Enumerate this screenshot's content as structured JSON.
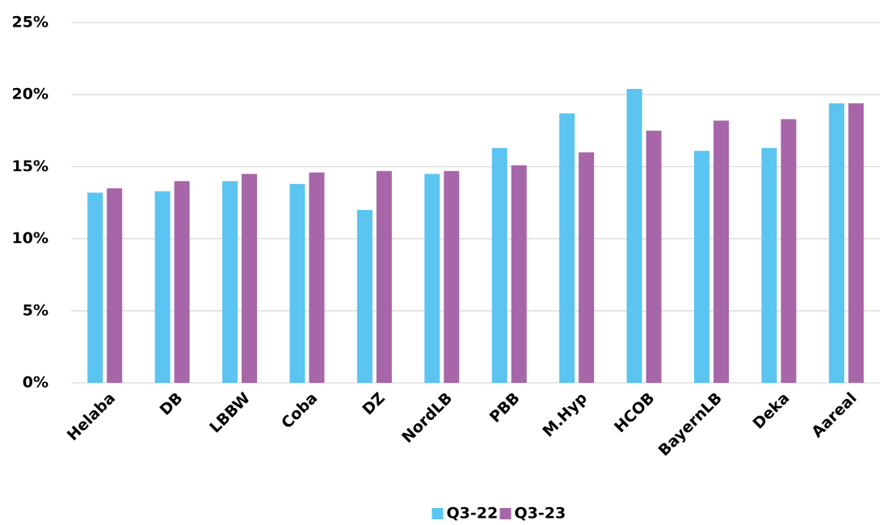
{
  "chart_data": {
    "type": "bar",
    "categories": [
      "Helaba",
      "DB",
      "LBBW",
      "Coba",
      "DZ",
      "NordLB",
      "PBB",
      "M.Hyp",
      "HCOB",
      "BayernLB",
      "Deka",
      "Aareal"
    ],
    "series": [
      {
        "name": "Q3-22",
        "color": "#5bc4f1",
        "values": [
          13.2,
          13.3,
          14.0,
          13.8,
          12.0,
          14.5,
          16.3,
          18.7,
          20.4,
          16.1,
          16.3,
          19.4
        ]
      },
      {
        "name": "Q3-23",
        "color": "#a666a8",
        "values": [
          13.5,
          14.0,
          14.5,
          14.6,
          14.7,
          14.7,
          15.1,
          16.0,
          17.5,
          18.2,
          18.3,
          19.4
        ]
      }
    ],
    "ylim": [
      0,
      25
    ],
    "yticks": [
      {
        "value": 0,
        "label": "0%"
      },
      {
        "value": 5,
        "label": "5%"
      },
      {
        "value": 10,
        "label": "10%"
      },
      {
        "value": 15,
        "label": "15%"
      },
      {
        "value": 20,
        "label": "20%"
      },
      {
        "value": 25,
        "label": "25%"
      }
    ],
    "grid": true,
    "legend": "bottom"
  }
}
